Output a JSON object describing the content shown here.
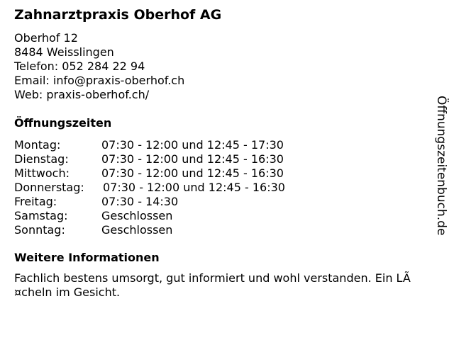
{
  "title": "Zahnarztpraxis Oberhof AG",
  "address": {
    "street": "Oberhof 12",
    "city": "8484 Weisslingen",
    "phone": "Telefon: 052 284 22 94",
    "email": "Email: info@praxis-oberhof.ch",
    "web": "Web: praxis-oberhof.ch/"
  },
  "hours_heading": "Öffnungszeiten",
  "hours": [
    {
      "day": "Montag:",
      "time": "07:30 - 12:00 und 12:45 - 17:30"
    },
    {
      "day": "Dienstag:",
      "time": "07:30 - 12:00 und 12:45 - 16:30"
    },
    {
      "day": "Mittwoch:",
      "time": "07:30 - 12:00 und 12:45 - 16:30"
    },
    {
      "day": "Donnerstag:",
      "time": "07:30 - 12:00 und 12:45 - 16:30"
    },
    {
      "day": "Freitag:",
      "time": "07:30 - 14:30"
    },
    {
      "day": "Samstag:",
      "time": "Geschlossen"
    },
    {
      "day": "Sonntag:",
      "time": "Geschlossen"
    }
  ],
  "info_heading": "Weitere Informationen",
  "info_text": "Fachlich bestens umsorgt, gut informiert und wohl verstanden. Ein LÃ ¤cheln im Gesicht.",
  "side_brand": "Öffnungszeitenbuch.de"
}
